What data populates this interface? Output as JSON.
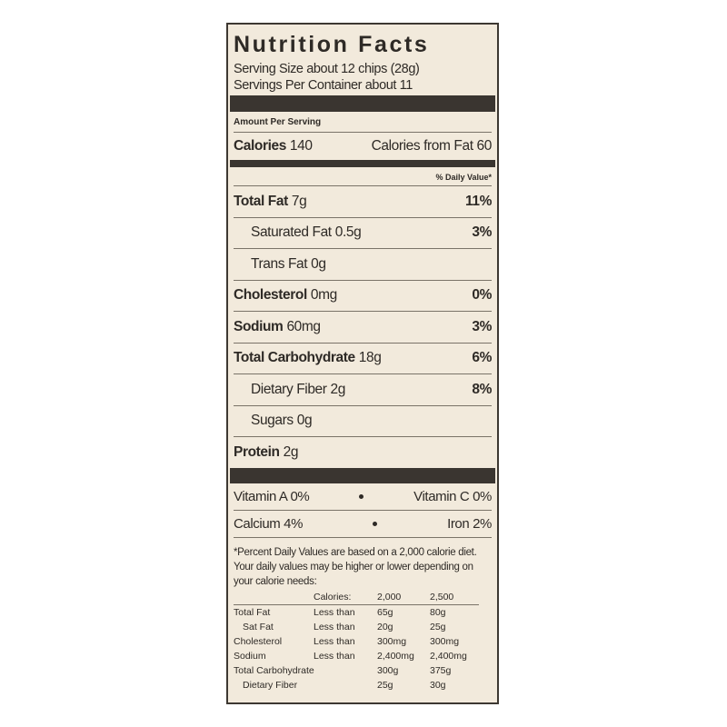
{
  "title": "Nutrition Facts",
  "serving_size": "Serving Size about 12 chips (28g)",
  "servings_per_container": "Servings Per Container about 11",
  "amount_per_serving": "Amount Per Serving",
  "calories": {
    "label": "Calories",
    "value": "140"
  },
  "calories_from_fat": {
    "label": "Calories from Fat",
    "value": "60"
  },
  "daily_value_header": "% Daily Value*",
  "nutrients": [
    {
      "name": "Total Fat",
      "amount": "7g",
      "dv": "11%"
    },
    {
      "name": "Saturated Fat",
      "amount": "0.5g",
      "dv": "3%"
    },
    {
      "name": "Trans Fat",
      "amount": "0g"
    },
    {
      "name": "Cholesterol",
      "amount": "0mg",
      "dv": "0%"
    },
    {
      "name": "Sodium",
      "amount": "60mg",
      "dv": "3%"
    },
    {
      "name": "Total Carbohydrate",
      "amount": "18g",
      "dv": "6%"
    },
    {
      "name": "Dietary Fiber",
      "amount": "2g",
      "dv": "8%"
    },
    {
      "name": "Sugars",
      "amount": "0g"
    },
    {
      "name": "Protein",
      "amount": "2g"
    }
  ],
  "vitamins": [
    [
      {
        "name": "Vitamin A",
        "dv": "0%"
      },
      {
        "name": "Vitamin C",
        "dv": "0%"
      }
    ],
    [
      {
        "name": "Calcium",
        "dv": "4%"
      },
      {
        "name": "Iron",
        "dv": "2%"
      }
    ]
  ],
  "footnote": "*Percent Daily Values are based on a 2,000 calorie diet. Your daily values may be higher or lower depending on your calorie needs:",
  "dv_table": {
    "header": {
      "label": "Calories:",
      "a": "2,000",
      "b": "2,500"
    },
    "rows": [
      {
        "nutrient": "Total Fat",
        "limit": "Less than",
        "a": "65g",
        "b": "80g"
      },
      {
        "nutrient": "Sat Fat",
        "limit": "Less than",
        "a": "20g",
        "b": "25g"
      },
      {
        "nutrient": "Cholesterol",
        "limit": "Less than",
        "a": "300mg",
        "b": "300mg"
      },
      {
        "nutrient": "Sodium",
        "limit": "Less than",
        "a": "2,400mg",
        "b": "2,400mg"
      },
      {
        "nutrient": "Total Carbohydrate",
        "a": "300g",
        "b": "375g"
      },
      {
        "nutrient": "Dietary Fiber",
        "a": "25g",
        "b": "30g"
      }
    ]
  }
}
